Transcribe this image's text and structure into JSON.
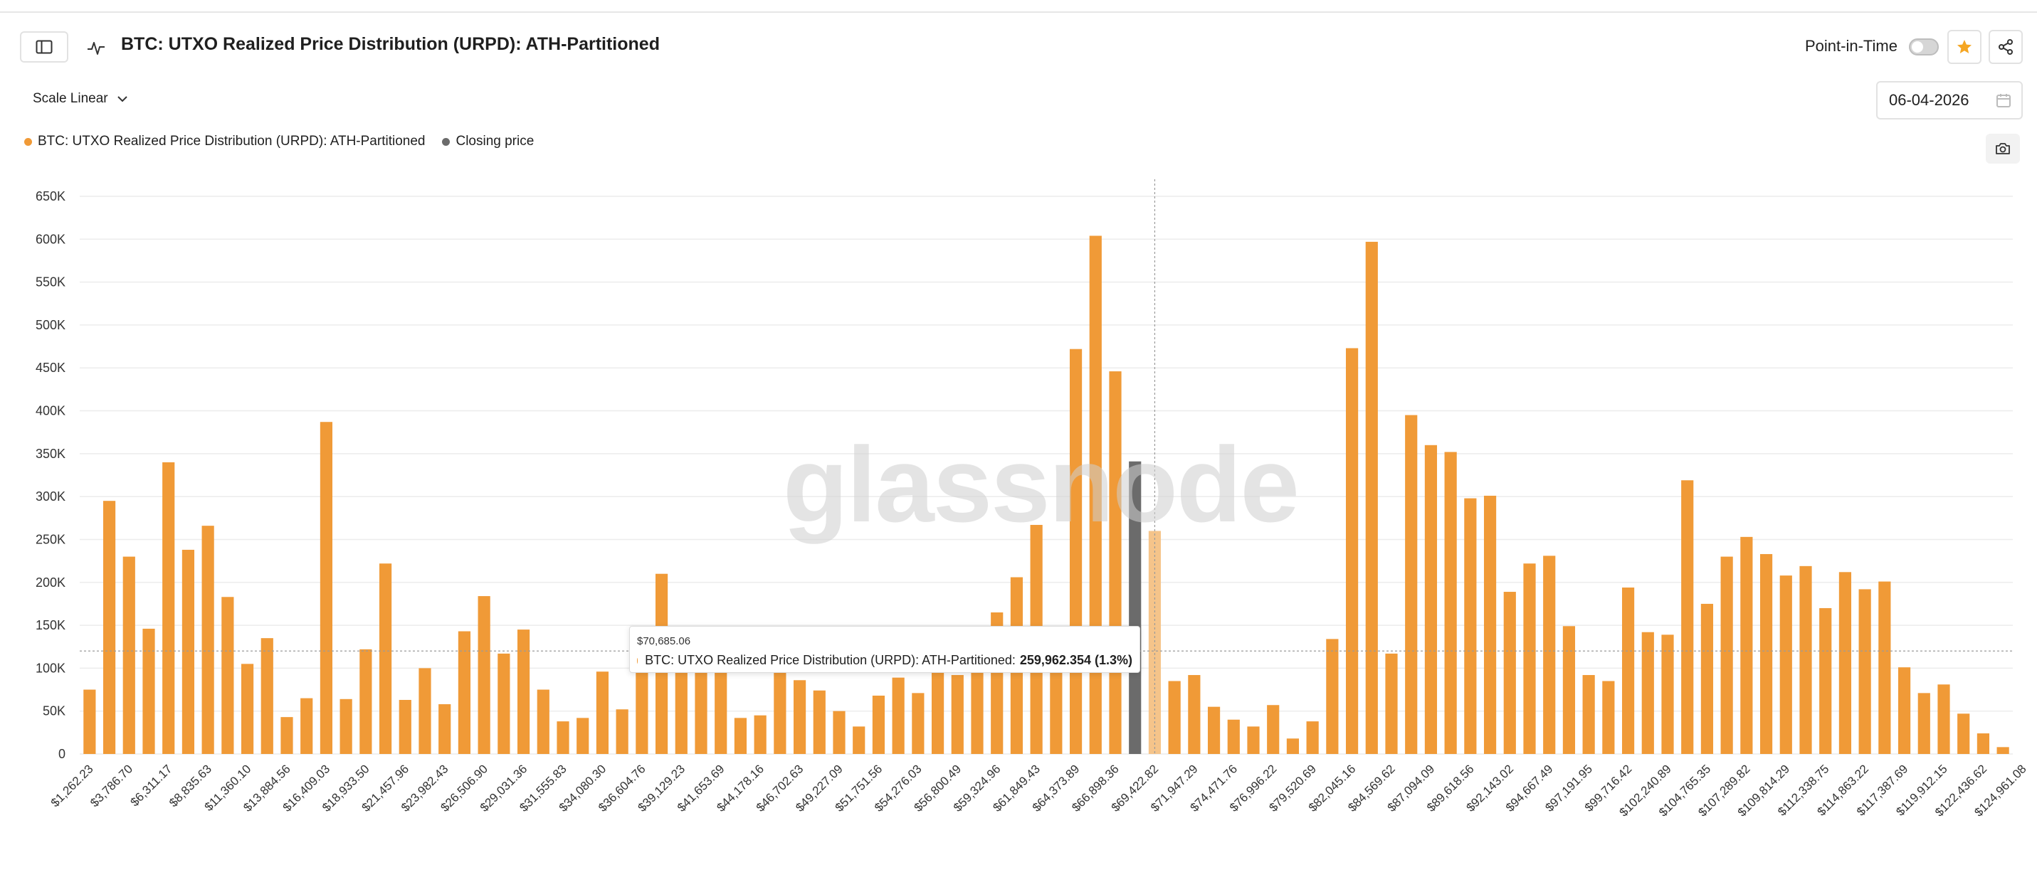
{
  "header": {
    "title": "BTC: UTXO Realized Price Distribution (URPD): ATH-Partitioned",
    "point_in_time_label": "Point-in-Time"
  },
  "toolbar": {
    "scale_label": "Scale Linear",
    "date_value": "06-04-2026"
  },
  "legend": [
    {
      "label": "BTC: UTXO Realized Price Distribution (URPD): ATH-Partitioned",
      "color": "#f09a37"
    },
    {
      "label": "Closing price",
      "color": "#6b6b6b"
    }
  ],
  "watermark": "glassnode",
  "tooltip": {
    "date": "$70,685.06",
    "series": "BTC: UTXO Realized Price Distribution (URPD): ATH-Partitioned:",
    "value": "259,962.354 (1.3%)"
  },
  "colors": {
    "bar": "#f09a37",
    "highlight_bar": "#f5c48a",
    "closing_bar": "#6b6b6b",
    "accent_star": "#f5a623"
  },
  "chart_data": {
    "type": "bar",
    "title": "BTC: UTXO Realized Price Distribution (URPD): ATH-Partitioned",
    "ylim": [
      0,
      650000
    ],
    "y_ticks": [
      "0",
      "50K",
      "100K",
      "150K",
      "200K",
      "250K",
      "300K",
      "350K",
      "400K",
      "450K",
      "500K",
      "550K",
      "600K",
      "650K"
    ],
    "x_tick_labels": [
      "$1,262.23",
      "$3,786.70",
      "$6,311.17",
      "$8,835.63",
      "$11,360.10",
      "$13,884.56",
      "$16,409.03",
      "$18,933.50",
      "$21,457.96",
      "$23,982.43",
      "$26,506.90",
      "$29,031.36",
      "$31,555.83",
      "$34,080.30",
      "$36,604.76",
      "$39,129.23",
      "$41,653.69",
      "$44,178.16",
      "$46,702.63",
      "$49,227.09",
      "$51,751.56",
      "$54,276.03",
      "$56,800.49",
      "$59,324.96",
      "$61,849.43",
      "$64,373.89",
      "$66,898.36",
      "$69,422.82",
      "$71,947.29",
      "$74,471.76",
      "$76,996.22",
      "$79,520.69",
      "$82,045.16",
      "$84,569.62",
      "$87,094.09",
      "$89,618.56",
      "$92,143.02",
      "$94,667.49",
      "$97,191.95",
      "$99,716.42",
      "$102,240.89",
      "$104,765.35",
      "$107,289.82",
      "$109,814.29",
      "$112,338.75",
      "$114,863.22",
      "$117,387.69",
      "$119,912.15",
      "$122,436.62",
      "$124,961.08"
    ],
    "values": [
      75000,
      295000,
      230000,
      146000,
      340000,
      238000,
      266000,
      183000,
      105000,
      135000,
      43000,
      65000,
      387000,
      64000,
      122000,
      222000,
      63000,
      100000,
      58000,
      143000,
      184000,
      117000,
      145000,
      75000,
      38000,
      42000,
      96000,
      52000,
      100000,
      210000,
      100000,
      100000,
      100000,
      42000,
      45000,
      100000,
      86000,
      74000,
      50000,
      32000,
      68000,
      89000,
      71000,
      100000,
      92000,
      100000,
      165000,
      206000,
      267000,
      100000,
      472000,
      604000,
      446000,
      341000,
      259962,
      85000,
      92000,
      55000,
      40000,
      32000,
      57000,
      18000,
      38000,
      134000,
      473000,
      597000,
      117000,
      395000,
      360000,
      352000,
      298000,
      301000,
      189000,
      222000,
      231000,
      149000,
      92000,
      85000,
      194000,
      142000,
      139000,
      319000,
      175000,
      230000,
      253000,
      233000,
      208000,
      219000,
      170000,
      212000,
      192000,
      201000,
      101000,
      71000,
      81000,
      47000,
      24000,
      8000
    ],
    "closing_price_index": 53,
    "highlighted_index": 54,
    "reference_value": 120000
  }
}
